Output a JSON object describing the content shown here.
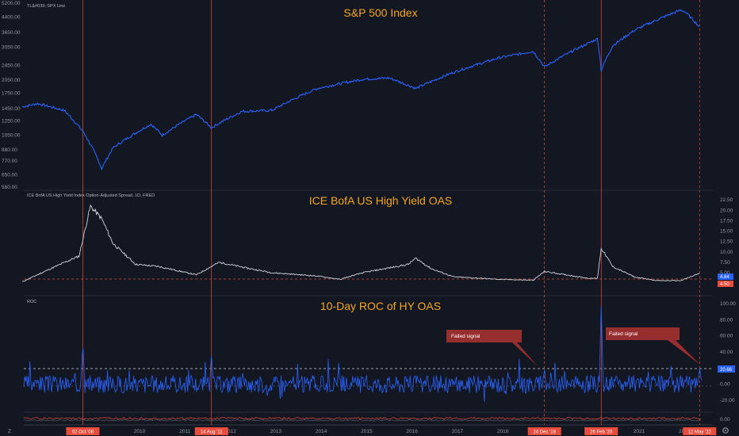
{
  "chart_data": [
    {
      "type": "line",
      "id": "spx",
      "legend": "TL&#039;:SPX Line",
      "title": "S&P 500 Index",
      "y_ticks": [
        "5200.00",
        "4400.00",
        "3650.00",
        "3050.00",
        "2450.00",
        "2050.00",
        "1750.00",
        "1450.00",
        "1250.00",
        "1050.00",
        "880.00",
        "770.00",
        "650.00",
        "560.00"
      ],
      "series": [
        {
          "color": "#2962ff",
          "x": [
            "2007-06",
            "2007-10",
            "2008-05",
            "2008-10",
            "2009-03",
            "2009-06",
            "2010-04",
            "2010-07",
            "2011-04",
            "2011-08",
            "2012-04",
            "2012-12",
            "2013-12",
            "2014-12",
            "2015-07",
            "2016-02",
            "2016-12",
            "2017-12",
            "2018-09",
            "2018-12",
            "2019-12",
            "2020-02",
            "2020-03",
            "2020-06",
            "2020-12",
            "2021-12",
            "2022-01",
            "2022-05"
          ],
          "values": [
            1480,
            1540,
            1420,
            1100,
            700,
            900,
            1200,
            1050,
            1350,
            1150,
            1400,
            1420,
            1850,
            2070,
            2100,
            1850,
            2250,
            2680,
            2900,
            2400,
            3230,
            3380,
            2300,
            3100,
            3760,
            4780,
            4700,
            3900
          ]
        }
      ]
    },
    {
      "type": "line",
      "id": "oas",
      "legend": "ICE BofA US High Yield Index Option-Adjusted Spread, 1D, FRED",
      "title": "ICE BofA US High Yield OAS",
      "y_ticks": [
        "22.50",
        "20.00",
        "17.50",
        "15.00",
        "12.50",
        "10.00",
        "7.50",
        "5.00",
        "2.50"
      ],
      "last_value_labels": [
        "4.84",
        "4.50"
      ],
      "series": [
        {
          "color": "#d1d4dc",
          "x": [
            "2007-06",
            "2007-10",
            "2008-04",
            "2008-09",
            "2008-12",
            "2009-03",
            "2009-06",
            "2009-12",
            "2010-06",
            "2011-04",
            "2011-10",
            "2012-06",
            "2012-12",
            "2013-12",
            "2014-06",
            "2014-12",
            "2015-12",
            "2016-02",
            "2016-06",
            "2016-12",
            "2017-12",
            "2018-09",
            "2018-12",
            "2019-12",
            "2020-02",
            "2020-03",
            "2020-06",
            "2020-12",
            "2021-06",
            "2021-12",
            "2022-05"
          ],
          "values": [
            2.8,
            4.5,
            7,
            9,
            21,
            18,
            12,
            7,
            6.5,
            4.5,
            7.5,
            6,
            5,
            4.2,
            3.4,
            5,
            7,
            8.5,
            6,
            4,
            3.4,
            3.2,
            5.3,
            3.6,
            3.7,
            10.9,
            6.5,
            3.9,
            3.1,
            3.1,
            4.84
          ]
        }
      ]
    },
    {
      "type": "line",
      "id": "roc",
      "legend": "ROC",
      "title": "10-Day ROC of HY OAS",
      "y_ticks": [
        "100.00",
        "80.00",
        "60.00",
        "40.00",
        "20.00",
        "0.00",
        "-20.00"
      ],
      "last_value_label": "20.66",
      "lower_tick": "0.00",
      "annotations": [
        "Failed signal",
        "Failed signal"
      ],
      "series": [
        {
          "color": "#2962ff",
          "x": [
            "2008-10",
            "2011-08",
            "2018-12",
            "2020-03",
            "2022-05"
          ],
          "values": [
            52,
            38,
            18,
            98,
            20.66
          ]
        }
      ]
    }
  ],
  "x_axis": {
    "tick_labels": [
      "2010",
      "2011",
      "2012",
      "2013",
      "2014",
      "2015",
      "2016",
      "2017",
      "2018",
      "2019",
      "2020",
      "2021",
      "2022"
    ],
    "signal_labels": [
      "02 Oct '08",
      "14 Aug '11",
      "24 Dec '18",
      "26 Feb '20",
      "12 May '22"
    ]
  },
  "toolbar": {
    "zoom_icon": "Z",
    "settings_icon": "gear-icon"
  },
  "colors": {
    "background": "#131722",
    "price_line": "#2962ff",
    "oas_line": "#d1d4dc",
    "signal_line": "#e74c3c",
    "title": "#f5a623",
    "annotation": "#962e2e"
  }
}
